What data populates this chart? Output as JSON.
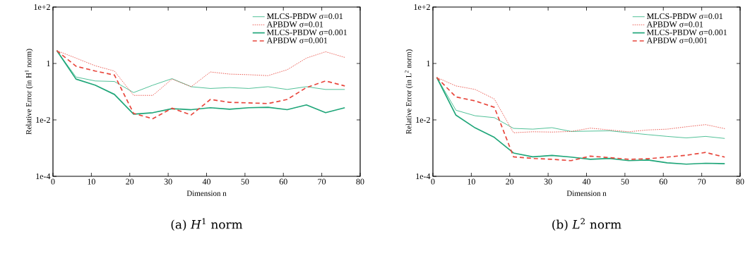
{
  "chart_data": [
    {
      "type": "line",
      "title": "(a) *H*$^{1}$ norm",
      "xlabel": "Dimension n",
      "ylabel": "Relative Error (in H$^{1}$ norm)",
      "log": "y",
      "legend": "top right",
      "grid": false,
      "x": [
        1,
        6,
        11,
        16,
        21,
        26,
        31,
        36,
        41,
        46,
        51,
        56,
        61,
        66,
        71,
        76
      ],
      "xlim": [
        0,
        80
      ],
      "xticks": [
        0,
        10,
        20,
        30,
        40,
        50,
        60,
        70,
        80
      ],
      "ylim": [
        0.0001,
        100
      ],
      "yticks": [
        {
          "value": 0.0001,
          "label": "1e-4"
        },
        {
          "value": 0.01,
          "label": "1e-2"
        },
        1,
        {
          "value": 100,
          "label": "1e+2"
        }
      ],
      "series": [
        {
          "name": "MLCS-PBDW σ=0.01",
          "color": "#3dba8c",
          "line_style": "solid",
          "values": [
            2.85,
            0.33,
            0.24,
            0.23,
            0.093,
            0.17,
            0.29,
            0.15,
            0.13,
            0.14,
            0.13,
            0.15,
            0.12,
            0.15,
            0.12,
            0.12
          ]
        },
        {
          "name": "APBDW σ=0.01",
          "color": "#e8463c",
          "line_style": "dotted",
          "values": [
            2.85,
            1.55,
            0.83,
            0.54,
            0.074,
            0.074,
            0.28,
            0.15,
            0.5,
            0.42,
            0.4,
            0.37,
            0.6,
            1.55,
            2.6,
            1.64
          ]
        },
        {
          "name": "MLCS-PBDW σ=0.001",
          "color": "#1fa679",
          "line_style": "solid",
          "values": [
            2.85,
            0.28,
            0.17,
            0.08,
            0.016,
            0.018,
            0.025,
            0.023,
            0.027,
            0.024,
            0.027,
            0.028,
            0.023,
            0.034,
            0.018,
            0.027
          ]
        },
        {
          "name": "APBDW σ=0.001",
          "color": "#e8463c",
          "line_style": "dashed",
          "values": [
            2.85,
            0.8,
            0.54,
            0.39,
            0.017,
            0.011,
            0.026,
            0.015,
            0.053,
            0.042,
            0.04,
            0.038,
            0.053,
            0.14,
            0.24,
            0.16
          ]
        }
      ]
    },
    {
      "type": "line",
      "title": "(b) *L*$^{2}$ norm",
      "xlabel": "Dimension n",
      "ylabel": "Relative Error (in L$^{2}$ norm)",
      "log": "y",
      "legend": "top right",
      "grid": false,
      "x": [
        1,
        6,
        11,
        16,
        21,
        26,
        31,
        36,
        41,
        46,
        51,
        56,
        61,
        66,
        71,
        76
      ],
      "xlim": [
        0,
        80
      ],
      "xticks": [
        0,
        10,
        20,
        30,
        40,
        50,
        60,
        70,
        80
      ],
      "ylim": [
        0.0001,
        100
      ],
      "yticks": [
        {
          "value": 0.0001,
          "label": "1e-4"
        },
        {
          "value": 0.01,
          "label": "1e-2"
        },
        1,
        {
          "value": 100,
          "label": "1e+2"
        }
      ],
      "series": [
        {
          "name": "MLCS-PBDW σ=0.01",
          "color": "#3dba8c",
          "line_style": "solid",
          "values": [
            0.32,
            0.022,
            0.014,
            0.012,
            0.005,
            0.0047,
            0.0053,
            0.0039,
            0.004,
            0.0041,
            0.0035,
            0.003,
            0.0026,
            0.0023,
            0.0026,
            0.0022
          ]
        },
        {
          "name": "APBDW σ=0.01",
          "color": "#e8463c",
          "line_style": "dotted",
          "values": [
            0.32,
            0.16,
            0.12,
            0.055,
            0.0035,
            0.0038,
            0.0037,
            0.0039,
            0.0051,
            0.0044,
            0.0038,
            0.0044,
            0.0047,
            0.0057,
            0.0068,
            0.0049
          ]
        },
        {
          "name": "MLCS-PBDW σ=0.001",
          "color": "#1fa679",
          "line_style": "solid",
          "values": [
            0.32,
            0.0147,
            0.0052,
            0.0024,
            0.00067,
            0.00049,
            0.00055,
            0.00048,
            0.0004,
            0.00043,
            0.00036,
            0.00038,
            0.0003,
            0.00027,
            0.00029,
            0.00028
          ]
        },
        {
          "name": "APBDW σ=0.001",
          "color": "#e8463c",
          "line_style": "dashed",
          "values": [
            0.32,
            0.065,
            0.047,
            0.028,
            0.00049,
            0.00043,
            0.0004,
            0.00036,
            0.00052,
            0.00046,
            0.0004,
            0.00042,
            0.00048,
            0.00056,
            0.0007,
            0.00048
          ]
        }
      ]
    }
  ]
}
